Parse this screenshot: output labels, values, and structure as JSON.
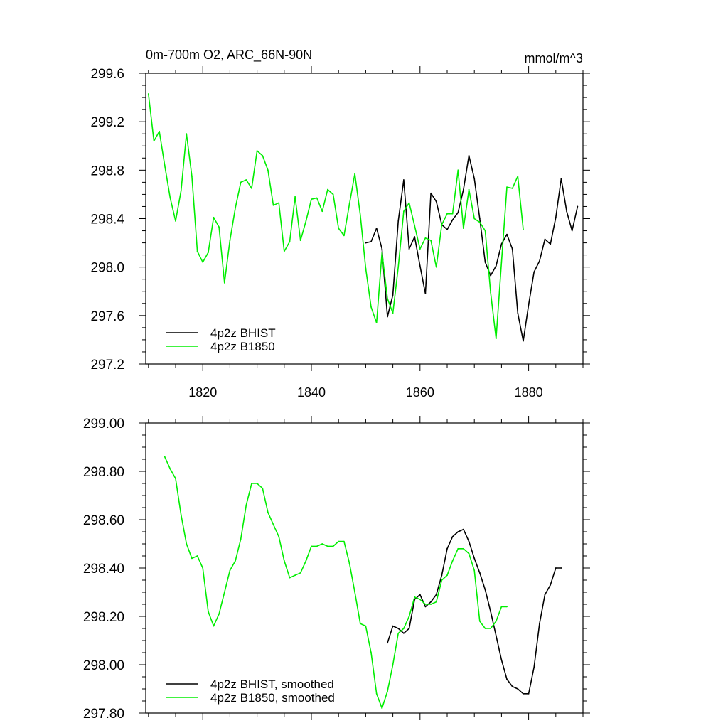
{
  "chart_data": [
    {
      "type": "line",
      "title": "0m-700m O2, ARC_66N-90N",
      "units": "mmol/m^3",
      "xlabel": "",
      "ylabel": "",
      "xlim": [
        1809.5,
        1890
      ],
      "ylim": [
        297.2,
        299.6
      ],
      "xticks": [
        1820,
        1840,
        1860,
        1880
      ],
      "xtick_labels": [
        "1820",
        "1840",
        "1860",
        "1880"
      ],
      "yticks": [
        297.2,
        297.6,
        298.0,
        298.4,
        298.8,
        299.2,
        299.6
      ],
      "ytick_labels": [
        "297.2",
        "297.6",
        "298.0",
        "298.4",
        "298.8",
        "299.2",
        "299.6"
      ],
      "legend_position": "bottom-left",
      "series": [
        {
          "name": "4p2z BHIST",
          "color": "#000000",
          "x": [
            1850,
            1851,
            1852,
            1853,
            1854,
            1855,
            1856,
            1857,
            1858,
            1859,
            1860,
            1861,
            1862,
            1863,
            1864,
            1865,
            1866,
            1867,
            1868,
            1869,
            1870,
            1871,
            1872,
            1873,
            1874,
            1875,
            1876,
            1877,
            1878,
            1879,
            1880,
            1881,
            1882,
            1883,
            1884,
            1885,
            1886,
            1887,
            1888,
            1889
          ],
          "values": [
            298.2,
            298.21,
            298.32,
            298.15,
            297.59,
            297.77,
            298.38,
            298.72,
            298.15,
            298.25,
            298.01,
            297.78,
            298.61,
            298.54,
            298.35,
            298.31,
            298.39,
            298.45,
            298.64,
            298.92,
            298.73,
            298.4,
            298.04,
            297.93,
            298.01,
            298.19,
            298.27,
            298.15,
            297.62,
            297.39,
            297.69,
            297.96,
            298.05,
            298.23,
            298.19,
            298.41,
            298.73,
            298.46,
            298.3,
            298.5
          ]
        },
        {
          "name": "4p2z B1850",
          "color": "#00ee00",
          "x": [
            1810,
            1811,
            1812,
            1813,
            1814,
            1815,
            1816,
            1817,
            1818,
            1819,
            1820,
            1821,
            1822,
            1823,
            1824,
            1825,
            1826,
            1827,
            1828,
            1829,
            1830,
            1831,
            1832,
            1833,
            1834,
            1835,
            1836,
            1837,
            1838,
            1839,
            1840,
            1841,
            1842,
            1843,
            1844,
            1845,
            1846,
            1847,
            1848,
            1849,
            1850,
            1851,
            1852,
            1853,
            1854,
            1855,
            1856,
            1857,
            1858,
            1859,
            1860,
            1861,
            1862,
            1863,
            1864,
            1865,
            1866,
            1867,
            1868,
            1869,
            1870,
            1871,
            1872,
            1873,
            1874,
            1875,
            1876,
            1877,
            1878,
            1879
          ],
          "values": [
            299.43,
            299.04,
            299.12,
            298.84,
            298.57,
            298.38,
            298.63,
            299.1,
            298.75,
            298.13,
            298.04,
            298.12,
            298.41,
            298.33,
            297.87,
            298.22,
            298.49,
            298.7,
            298.72,
            298.65,
            298.96,
            298.92,
            298.8,
            298.51,
            298.53,
            298.13,
            298.21,
            298.58,
            298.22,
            298.38,
            298.56,
            298.57,
            298.46,
            298.64,
            298.6,
            298.32,
            298.26,
            298.52,
            298.77,
            298.43,
            297.99,
            297.67,
            297.54,
            298.12,
            297.74,
            297.62,
            298.0,
            298.46,
            298.53,
            298.34,
            298.15,
            298.24,
            298.22,
            298.0,
            298.35,
            298.44,
            298.44,
            298.8,
            298.32,
            298.64,
            298.4,
            298.37,
            298.3,
            297.79,
            297.41,
            298.04,
            298.66,
            298.65,
            298.75,
            298.31
          ]
        }
      ]
    },
    {
      "type": "line",
      "title": "",
      "xlabel": "",
      "ylabel": "",
      "xlim": [
        1809.5,
        1890
      ],
      "ylim": [
        297.8,
        299.0
      ],
      "xticks": [
        1820,
        1840,
        1860,
        1880
      ],
      "xtick_labels": [
        "",
        "",
        "",
        ""
      ],
      "yticks": [
        297.8,
        298.0,
        298.2,
        298.4,
        298.6,
        298.8,
        299.0
      ],
      "ytick_labels": [
        "297.80",
        "298.00",
        "298.20",
        "298.40",
        "298.60",
        "298.80",
        "299.00"
      ],
      "legend_position": "bottom-left",
      "series": [
        {
          "name": "4p2z BHIST, smoothed",
          "color": "#000000",
          "x": [
            1854,
            1855,
            1856,
            1857,
            1858,
            1859,
            1860,
            1861,
            1862,
            1863,
            1864,
            1865,
            1866,
            1867,
            1868,
            1869,
            1870,
            1871,
            1872,
            1873,
            1874,
            1875,
            1876,
            1877,
            1878,
            1879,
            1880,
            1881,
            1882,
            1883,
            1884,
            1885,
            1886
          ],
          "values": [
            298.09,
            298.16,
            298.15,
            298.13,
            298.15,
            298.27,
            298.29,
            298.24,
            298.26,
            298.29,
            298.37,
            298.48,
            298.53,
            298.55,
            298.56,
            298.51,
            298.44,
            298.38,
            298.31,
            298.22,
            298.12,
            298.02,
            297.94,
            297.91,
            297.9,
            297.88,
            297.88,
            297.99,
            298.17,
            298.29,
            298.33,
            298.4,
            298.4
          ]
        },
        {
          "name": "4p2z B1850, smoothed",
          "color": "#00ee00",
          "x": [
            1813,
            1814,
            1815,
            1816,
            1817,
            1818,
            1819,
            1820,
            1821,
            1822,
            1823,
            1824,
            1825,
            1826,
            1827,
            1828,
            1829,
            1830,
            1831,
            1832,
            1833,
            1834,
            1835,
            1836,
            1837,
            1838,
            1839,
            1840,
            1841,
            1842,
            1843,
            1844,
            1845,
            1846,
            1847,
            1848,
            1849,
            1850,
            1851,
            1852,
            1853,
            1854,
            1855,
            1856,
            1857,
            1858,
            1859,
            1860,
            1861,
            1862,
            1863,
            1864,
            1865,
            1866,
            1867,
            1868,
            1869,
            1870,
            1871,
            1872,
            1873,
            1874,
            1875,
            1876
          ],
          "values": [
            298.86,
            298.81,
            298.77,
            298.62,
            298.5,
            298.44,
            298.45,
            298.4,
            298.22,
            298.16,
            298.21,
            298.3,
            298.39,
            298.43,
            298.52,
            298.66,
            298.75,
            298.75,
            298.73,
            298.63,
            298.58,
            298.53,
            298.43,
            298.36,
            298.37,
            298.38,
            298.43,
            298.49,
            298.49,
            298.5,
            298.49,
            298.49,
            298.51,
            298.51,
            298.42,
            298.3,
            298.17,
            298.16,
            298.05,
            297.88,
            297.82,
            297.89,
            298.0,
            298.13,
            298.15,
            298.2,
            298.28,
            298.27,
            298.25,
            298.25,
            298.26,
            298.35,
            298.37,
            298.43,
            298.48,
            298.48,
            298.46,
            298.39,
            298.18,
            298.15,
            298.15,
            298.18,
            298.24,
            298.24
          ]
        }
      ]
    }
  ]
}
